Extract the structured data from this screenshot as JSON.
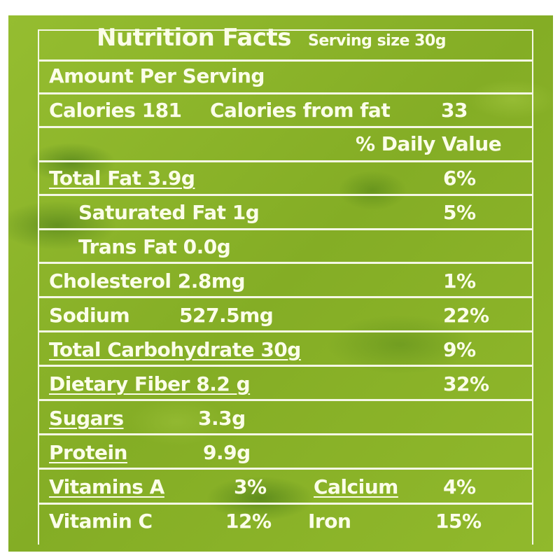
{
  "label": {
    "title": "Nutrition Facts",
    "serving": "Serving size 30g",
    "amount_per_serving": "Amount Per Serving",
    "calories": "Calories 181",
    "calories_from_fat_label": "Calories from fat",
    "calories_from_fat_value": "33",
    "daily_value_header": "% Daily Value",
    "rows": [
      {
        "name": "Total Fat 3.9g",
        "dv": "6%"
      },
      {
        "name": "Saturated Fat 1g",
        "dv": "5%"
      },
      {
        "name": "Trans Fat 0.0g",
        "dv": ""
      },
      {
        "name": "Cholesterol  2.8mg",
        "dv": "1%"
      },
      {
        "name": "Sodium",
        "amount": "527.5mg",
        "dv": "22%"
      },
      {
        "name": "Total Carbohydrate 30g",
        "dv": "9%"
      },
      {
        "name": "Dietary Fiber 8.2 g",
        "dv": "32%"
      },
      {
        "name": "Sugars",
        "amount": "3.3g"
      },
      {
        "name": "Protein",
        "amount": "9.9g"
      }
    ],
    "vitamins": [
      {
        "left_name": "Vitamins A",
        "left_dv": "3%",
        "right_name": "Calcium",
        "right_dv": "4%"
      },
      {
        "left_name": "Vitamin C",
        "left_dv": "12%",
        "right_name": "Iron",
        "right_dv": "15%"
      }
    ]
  }
}
